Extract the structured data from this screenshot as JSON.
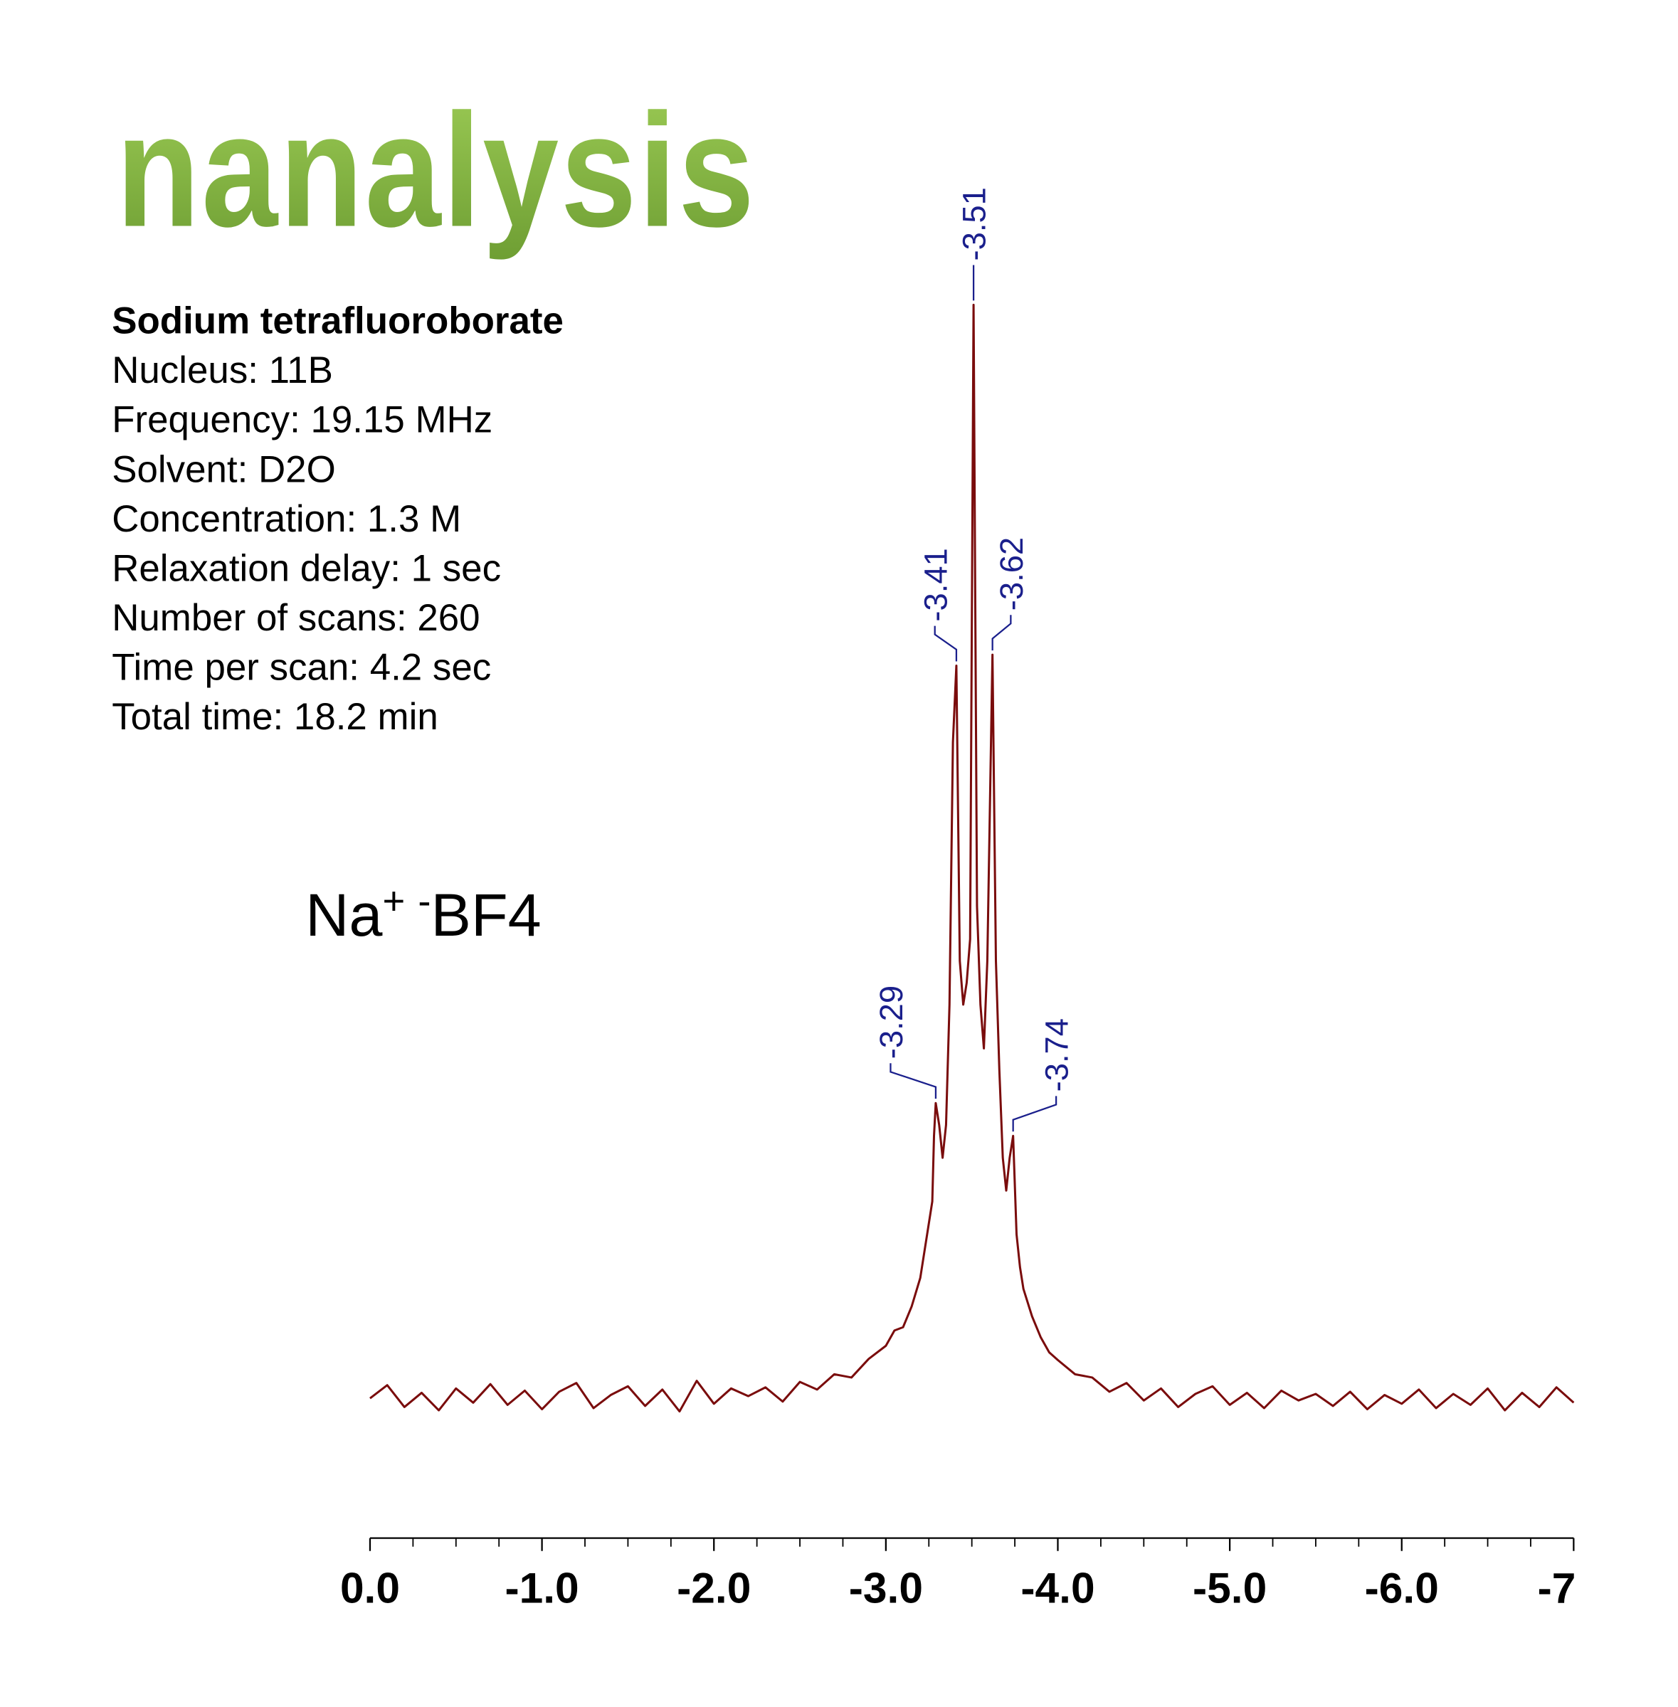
{
  "header": {
    "logo": "nanalysis"
  },
  "info": {
    "title": "Sodium tetrafluoroborate",
    "lines": [
      "Nucleus: 11B",
      "Frequency: 19.15 MHz",
      "Solvent: D2O",
      "Concentration: 1.3 M",
      "Relaxation delay: 1 sec",
      "Number of scans: 260",
      "Time per scan: 4.2 sec",
      "Total time: 18.2 min"
    ]
  },
  "compound": {
    "cation": "Na",
    "cation_charge": "+",
    "anion_charge": "-",
    "anion": "BF4"
  },
  "chart_data": {
    "type": "line",
    "color": "#7a0c0c",
    "peak_color": "#1a1f8c",
    "x": [
      0,
      -0.1,
      -0.2,
      -0.3,
      -0.4,
      -0.5,
      -0.6,
      -0.7,
      -0.8,
      -0.9,
      -1.0,
      -1.1,
      -1.2,
      -1.3,
      -1.4,
      -1.5,
      -1.6,
      -1.7,
      -1.8,
      -1.9,
      -2.0,
      -2.1,
      -2.2,
      -2.3,
      -2.4,
      -2.5,
      -2.6,
      -2.7,
      -2.8,
      -2.9,
      -3.0,
      -3.05,
      -3.1,
      -3.15,
      -3.2,
      -3.24,
      -3.27,
      -3.28,
      -3.29,
      -3.31,
      -3.33,
      -3.35,
      -3.37,
      -3.39,
      -3.41,
      -3.43,
      -3.45,
      -3.47,
      -3.49,
      -3.51,
      -3.53,
      -3.55,
      -3.57,
      -3.59,
      -3.62,
      -3.64,
      -3.66,
      -3.68,
      -3.7,
      -3.72,
      -3.74,
      -3.76,
      -3.78,
      -3.8,
      -3.85,
      -3.9,
      -3.95,
      -4.0,
      -4.1,
      -4.2,
      -4.3,
      -4.4,
      -4.5,
      -4.6,
      -4.7,
      -4.8,
      -4.9,
      -5.0,
      -5.1,
      -5.2,
      -5.3,
      -5.4,
      -5.5,
      -5.6,
      -5.7,
      -5.8,
      -5.9,
      -6.0,
      -6.1,
      -6.2,
      -6.3,
      -6.4,
      -6.5,
      -6.6,
      -6.7,
      -6.8,
      -6.9,
      -7.0
    ],
    "values": [
      0,
      1.2,
      -0.8,
      0.5,
      -1.1,
      0.9,
      -0.4,
      1.3,
      -0.6,
      0.7,
      -1.0,
      0.6,
      1.4,
      -0.9,
      0.3,
      1.1,
      -0.7,
      0.8,
      -1.2,
      1.6,
      -0.5,
      0.9,
      0.2,
      1.0,
      -0.3,
      1.5,
      0.8,
      2.2,
      1.9,
      3.6,
      4.8,
      6.2,
      6.5,
      8.4,
      11,
      15,
      18,
      24,
      27,
      25,
      22,
      25,
      36,
      60,
      67,
      40,
      36,
      38,
      42,
      100,
      45,
      36,
      32,
      40,
      68,
      40,
      30,
      22,
      19,
      22,
      24,
      15,
      12,
      10,
      7.5,
      5.6,
      4.2,
      3.5,
      2.2,
      1.9,
      0.6,
      1.4,
      -0.2,
      0.9,
      -0.8,
      0.4,
      1.1,
      -0.6,
      0.5,
      -0.9,
      0.7,
      -0.2,
      0.4,
      -0.7,
      0.6,
      -1.0,
      0.3,
      -0.5,
      0.8,
      -0.9,
      0.4,
      -0.6,
      0.9,
      -1.1,
      0.5,
      -0.8,
      1.0,
      -0.4
    ],
    "peaks": [
      -3.29,
      -3.41,
      -3.51,
      -3.62,
      -3.74
    ],
    "xlim": [
      0,
      -7
    ],
    "ylim": [
      -10,
      110
    ],
    "xticks": [
      {
        "value": 0,
        "label": "0.0"
      },
      {
        "value": -1,
        "label": "-1.0"
      },
      {
        "value": -2,
        "label": "-2.0"
      },
      {
        "value": -3,
        "label": "-3.0"
      },
      {
        "value": -4,
        "label": "-4.0"
      },
      {
        "value": -5,
        "label": "-5.0"
      },
      {
        "value": -6,
        "label": "-6.0"
      },
      -7
    ],
    "xminorticks": [
      -0.25,
      -0.5,
      -0.75,
      -1.25,
      -1.5,
      -1.75,
      -2.25,
      -2.5,
      -2.75,
      -3.25,
      -3.5,
      -3.75,
      -4.25,
      -4.5,
      -4.75,
      -5.25,
      -5.5,
      -5.75,
      -6.25,
      -6.5,
      -6.75
    ]
  }
}
